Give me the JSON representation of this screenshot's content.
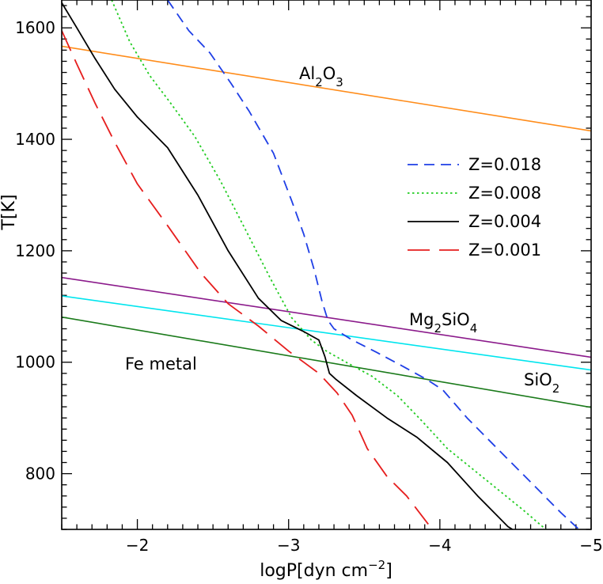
{
  "chart_data": {
    "type": "line",
    "xlabel": {
      "base": "logP[dyn cm",
      "sup": "−2",
      "end": "]"
    },
    "ylabel": "T[K]",
    "xlim": [
      -1.5,
      -5.0
    ],
    "ylim": [
      700,
      1650
    ],
    "x_ticks": [
      -2,
      -3,
      -4,
      -5
    ],
    "x_tick_labels": [
      "−2",
      "−3",
      "−4",
      "−5"
    ],
    "y_ticks": [
      800,
      1000,
      1200,
      1400,
      1600
    ],
    "y_tick_labels": [
      "800",
      "1000",
      "1200",
      "1400",
      "1600"
    ],
    "legend_position": "right-middle",
    "series": [
      {
        "name": "Z=0.018",
        "color": "#1f3fe6",
        "dash": "dashed",
        "points": [
          [
            -2.2,
            1650
          ],
          [
            -2.34,
            1595
          ],
          [
            -2.48,
            1555
          ],
          [
            -2.62,
            1500
          ],
          [
            -2.74,
            1450
          ],
          [
            -2.9,
            1375
          ],
          [
            -3.02,
            1290
          ],
          [
            -3.1,
            1230
          ],
          [
            -3.17,
            1165
          ],
          [
            -3.22,
            1110
          ],
          [
            -3.26,
            1075
          ],
          [
            -3.3,
            1060
          ],
          [
            -3.42,
            1040
          ],
          [
            -3.58,
            1018
          ],
          [
            -3.76,
            992
          ],
          [
            -3.92,
            968
          ],
          [
            -4.02,
            950
          ],
          [
            -4.18,
            900
          ],
          [
            -4.38,
            845
          ],
          [
            -4.6,
            785
          ],
          [
            -4.8,
            730
          ],
          [
            -4.92,
            700
          ]
        ]
      },
      {
        "name": "Z=0.008",
        "color": "#22cc22",
        "dash": "dotted",
        "points": [
          [
            -1.83,
            1650
          ],
          [
            -1.95,
            1575
          ],
          [
            -2.08,
            1515
          ],
          [
            -2.22,
            1465
          ],
          [
            -2.38,
            1405
          ],
          [
            -2.55,
            1325
          ],
          [
            -2.72,
            1235
          ],
          [
            -2.88,
            1150
          ],
          [
            -3.02,
            1080
          ],
          [
            -3.15,
            1040
          ],
          [
            -3.25,
            1020
          ],
          [
            -3.38,
            1000
          ],
          [
            -3.55,
            975
          ],
          [
            -3.72,
            940
          ],
          [
            -3.88,
            895
          ],
          [
            -4.05,
            845
          ],
          [
            -4.3,
            790
          ],
          [
            -4.55,
            735
          ],
          [
            -4.7,
            700
          ]
        ]
      },
      {
        "name": "Z=0.004",
        "color": "#000000",
        "dash": "solid",
        "points": [
          [
            -1.5,
            1645
          ],
          [
            -1.6,
            1600
          ],
          [
            -1.72,
            1545
          ],
          [
            -1.85,
            1490
          ],
          [
            -2.0,
            1440
          ],
          [
            -2.2,
            1385
          ],
          [
            -2.4,
            1300
          ],
          [
            -2.6,
            1200
          ],
          [
            -2.8,
            1115
          ],
          [
            -2.95,
            1075
          ],
          [
            -3.1,
            1055
          ],
          [
            -3.2,
            1040
          ],
          [
            -3.24,
            1010
          ],
          [
            -3.27,
            980
          ],
          [
            -3.31,
            970
          ],
          [
            -3.45,
            940
          ],
          [
            -3.65,
            900
          ],
          [
            -3.85,
            865
          ],
          [
            -4.05,
            820
          ],
          [
            -4.25,
            760
          ],
          [
            -4.45,
            705
          ],
          [
            -4.48,
            700
          ]
        ]
      },
      {
        "name": "Z=0.001",
        "color": "#e61e1e",
        "dash": "longdash",
        "points": [
          [
            -1.5,
            1595
          ],
          [
            -1.6,
            1535
          ],
          [
            -1.72,
            1465
          ],
          [
            -1.85,
            1395
          ],
          [
            -2.0,
            1320
          ],
          [
            -2.2,
            1245
          ],
          [
            -2.42,
            1160
          ],
          [
            -2.6,
            1105
          ],
          [
            -2.8,
            1065
          ],
          [
            -3.0,
            1020
          ],
          [
            -3.1,
            1000
          ],
          [
            -3.2,
            980
          ],
          [
            -3.32,
            945
          ],
          [
            -3.42,
            905
          ],
          [
            -3.52,
            845
          ],
          [
            -3.65,
            795
          ],
          [
            -3.78,
            760
          ],
          [
            -3.95,
            700
          ]
        ]
      }
    ],
    "condensation_lines": [
      {
        "label_base": "Al",
        "label_parts": [
          [
            "Al",
            ""
          ],
          [
            "2",
            "sub"
          ],
          [
            "O",
            ""
          ],
          [
            "3",
            "sub"
          ]
        ],
        "color": "#ff8c1a",
        "points": [
          [
            -1.5,
            1567
          ],
          [
            -5.0,
            1415
          ]
        ]
      },
      {
        "label_parts": [
          [
            "Mg",
            ""
          ],
          [
            "2",
            "sub"
          ],
          [
            "SiO",
            ""
          ],
          [
            "4",
            "sub"
          ]
        ],
        "color": "#8b1a8b",
        "points": [
          [
            -1.5,
            1152
          ],
          [
            -5.0,
            1009
          ]
        ]
      },
      {
        "label_parts": [],
        "color": "#00e5ee",
        "points": [
          [
            -1.5,
            1119
          ],
          [
            -5.0,
            986
          ]
        ]
      },
      {
        "label_parts": [
          [
            "SiO",
            ""
          ],
          [
            "2",
            "sub"
          ]
        ],
        "color": "#1a7a1a",
        "points": [
          [
            -1.5,
            1081
          ],
          [
            -5.0,
            919
          ]
        ]
      }
    ],
    "annotations": {
      "al2o3": [
        [
          "Al",
          ""
        ],
        [
          "2",
          "sub"
        ],
        [
          "O",
          ""
        ],
        [
          "3",
          "sub"
        ]
      ],
      "mg2sio4": [
        [
          "Mg",
          ""
        ],
        [
          "2",
          "sub"
        ],
        [
          "SiO",
          ""
        ],
        [
          "4",
          "sub"
        ]
      ],
      "sio2": [
        [
          "SiO",
          ""
        ],
        [
          "2",
          "sub"
        ]
      ],
      "fe_metal": "Fe metal"
    }
  }
}
